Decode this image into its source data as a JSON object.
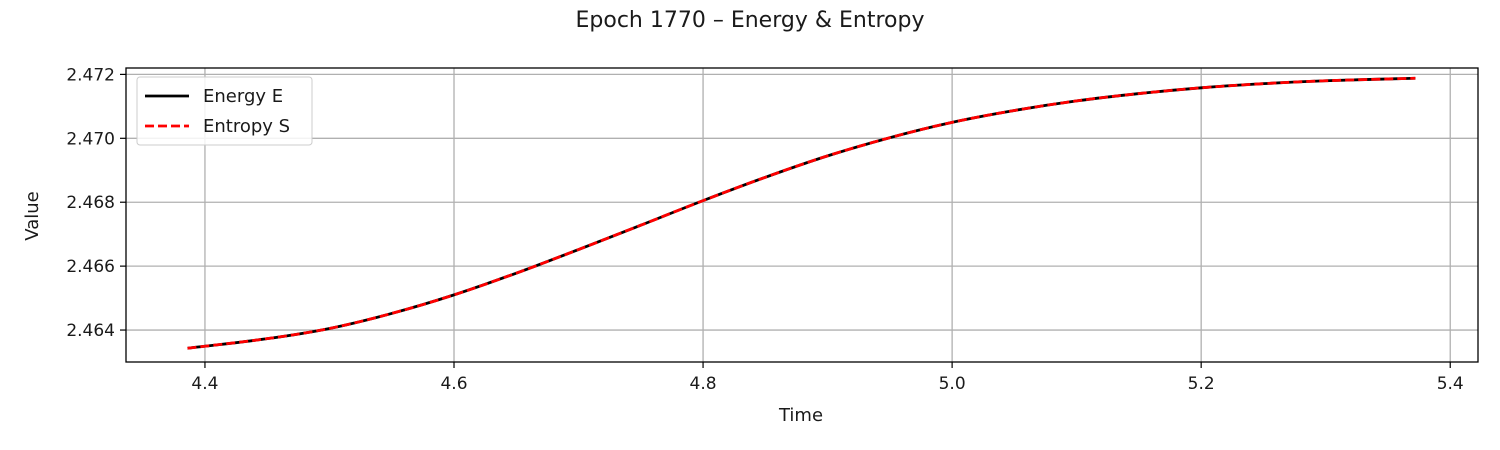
{
  "chart_data": {
    "type": "line",
    "title": "Epoch 1770 – Energy & Entropy",
    "xlabel": "Time",
    "ylabel": "Value",
    "xlim": [
      4.3366,
      5.4223
    ],
    "ylim": [
      2.463,
      2.4722
    ],
    "xticks": [
      4.4,
      4.6,
      4.8,
      5.0,
      5.2,
      5.4
    ],
    "xtick_labels": [
      "4.4",
      "4.6",
      "4.8",
      "5.0",
      "5.2",
      "5.4"
    ],
    "yticks": [
      2.464,
      2.466,
      2.468,
      2.47,
      2.472
    ],
    "ytick_labels": [
      "2.464",
      "2.466",
      "2.468",
      "2.470",
      "2.472"
    ],
    "grid": true,
    "legend_position": "top-left",
    "x": [
      4.386,
      4.45,
      4.5,
      4.55,
      4.6,
      4.65,
      4.7,
      4.75,
      4.8,
      4.85,
      4.9,
      4.95,
      5.0,
      5.05,
      5.1,
      5.15,
      5.2,
      5.25,
      5.3,
      5.372
    ],
    "series": [
      {
        "name": "Energy E",
        "color": "#000000",
        "style": "solid",
        "values": [
          2.46343,
          2.46373,
          2.46405,
          2.46452,
          2.4651,
          2.46578,
          2.46652,
          2.46728,
          2.46805,
          2.46878,
          2.46945,
          2.47002,
          2.4705,
          2.47087,
          2.47117,
          2.4714,
          2.47158,
          2.47171,
          2.4718,
          2.47188
        ]
      },
      {
        "name": "Entropy S",
        "color": "#ff0000",
        "style": "dashed",
        "values": [
          2.46343,
          2.46373,
          2.46405,
          2.46452,
          2.4651,
          2.46578,
          2.46652,
          2.46728,
          2.46805,
          2.46878,
          2.46945,
          2.47002,
          2.4705,
          2.47087,
          2.47117,
          2.4714,
          2.47158,
          2.47171,
          2.4718,
          2.47188
        ]
      }
    ]
  }
}
